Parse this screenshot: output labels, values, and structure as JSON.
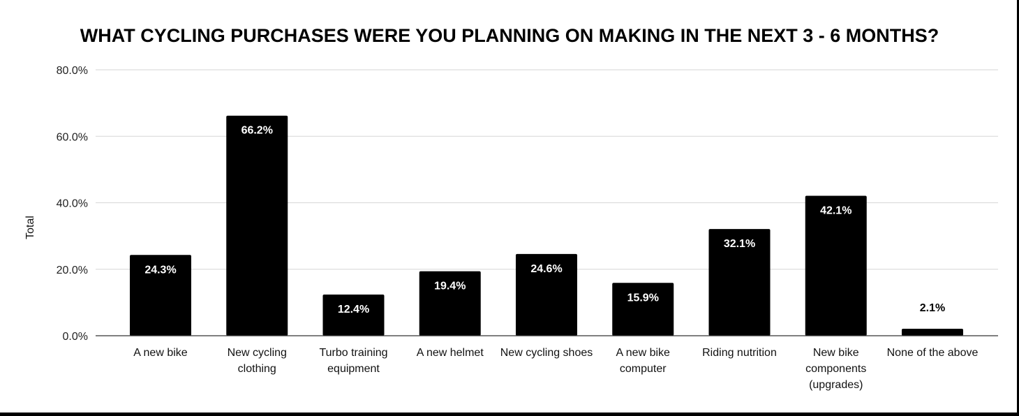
{
  "chart_data": {
    "type": "bar",
    "title": "WHAT CYCLING PURCHASES WERE YOU PLANNING ON MAKING IN THE NEXT 3 - 6 MONTHS?",
    "ylabel": "Total",
    "xlabel": "",
    "ylim": [
      0,
      80
    ],
    "yticks": [
      "0.0%",
      "20.0%",
      "40.0%",
      "60.0%",
      "80.0%"
    ],
    "ytick_values": [
      0,
      20,
      40,
      60,
      80
    ],
    "grid": true,
    "legend": "none",
    "bar_color": "#000000",
    "categories": [
      [
        "A new bike"
      ],
      [
        "New cycling",
        "clothing"
      ],
      [
        "Turbo training",
        "equipment"
      ],
      [
        "A new helmet"
      ],
      [
        "New cycling shoes"
      ],
      [
        "A new bike",
        "computer"
      ],
      [
        "Riding nutrition"
      ],
      [
        "New bike",
        "components",
        "(upgrades)"
      ],
      [
        "None of the above"
      ]
    ],
    "values": [
      24.3,
      66.2,
      12.4,
      19.4,
      24.6,
      15.9,
      32.1,
      42.1,
      2.1
    ],
    "data_labels": [
      "24.3%",
      "66.2%",
      "12.4%",
      "19.4%",
      "24.6%",
      "15.9%",
      "32.1%",
      "42.1%",
      "2.1%"
    ]
  }
}
